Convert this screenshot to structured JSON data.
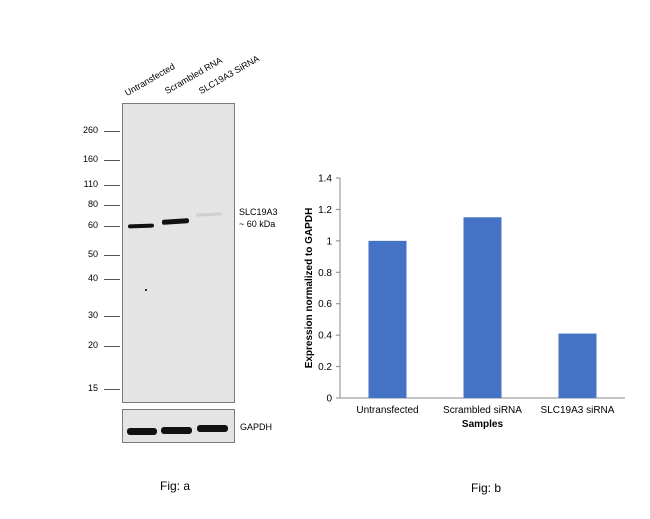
{
  "blot": {
    "lanes": [
      "Untransfected",
      "Scrambled RNA",
      "SLC19A3 SiRNA"
    ],
    "markers": [
      "260",
      "160",
      "110",
      "80",
      "60",
      "50",
      "40",
      "30",
      "20",
      "15"
    ],
    "target_label": [
      "SLC19A3",
      "~ 60 kDa"
    ],
    "loading_label": "GAPDH",
    "caption": "Fig: a"
  },
  "chart_data": {
    "type": "bar",
    "categories": [
      "Untransfected",
      "Scrambled siRNA",
      "SLC19A3 siRNA"
    ],
    "values": [
      1.0,
      1.15,
      0.41
    ],
    "xlabel": "Samples",
    "ylabel": "Expression normalized to GAPDH",
    "ylim": [
      0,
      1.4
    ],
    "yticks": [
      "0",
      "0.2",
      "0.4",
      "0.6",
      "0.8",
      "1",
      "1.2",
      "1.4"
    ],
    "bar_color": "#4472c4",
    "grid": false,
    "legend": "none"
  },
  "chart_caption": "Fig: b"
}
